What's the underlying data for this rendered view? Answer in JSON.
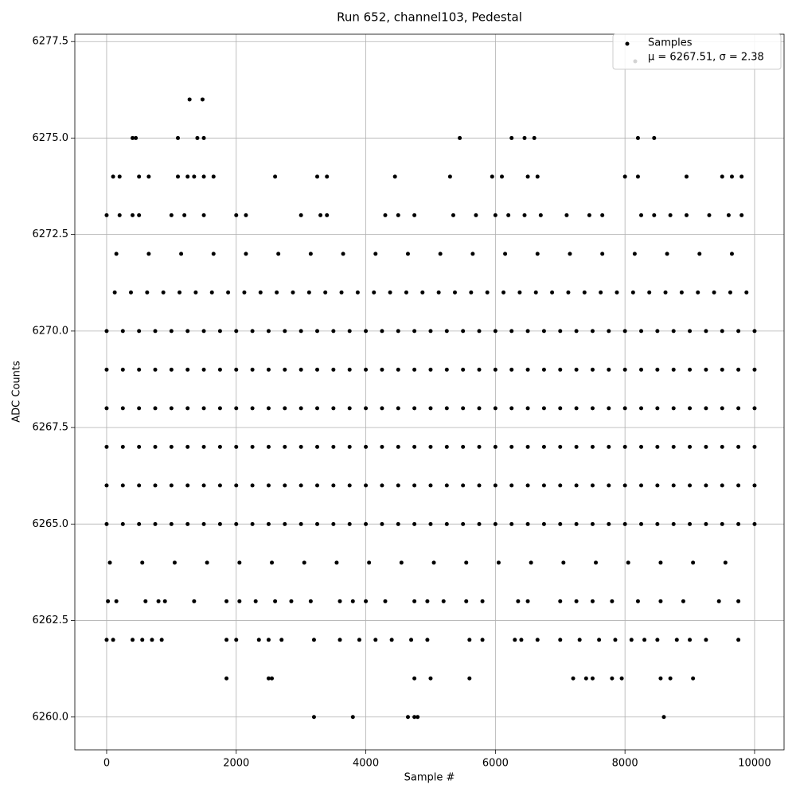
{
  "chart_data": {
    "type": "scatter",
    "title": "Run 652, channel103, Pedestal",
    "xlabel": "Sample #",
    "ylabel": "ADC Counts",
    "xlim": [
      -491,
      10455
    ],
    "ylim": [
      6259.15,
      6277.69
    ],
    "xticks": [
      0,
      2000,
      4000,
      6000,
      8000,
      10000
    ],
    "yticks": [
      {
        "value": 6260,
        "label": "6260.0"
      },
      {
        "value": 6262.5,
        "label": "6262.5"
      },
      {
        "value": 6265,
        "label": "6265.0"
      },
      {
        "value": 6267.5,
        "label": "6267.5"
      },
      {
        "value": 6270,
        "label": "6270.0"
      },
      {
        "value": 6272.5,
        "label": "6272.5"
      },
      {
        "value": 6275,
        "label": "6275.0"
      },
      {
        "value": 6277.5,
        "label": "6277.5"
      }
    ],
    "grid": true,
    "legend": "upper right",
    "series": [
      {
        "name": "Samples",
        "color": "#000000",
        "x": [
          0,
          250,
          500,
          750,
          1000,
          1250,
          1500,
          1750,
          2000,
          2250,
          2500,
          2750,
          3000,
          3250,
          3500,
          3750,
          4000,
          4250,
          4500,
          4750,
          5000,
          5250,
          5500,
          5750,
          6000,
          6250,
          6500,
          6750,
          7000,
          7250,
          7500,
          7750,
          8000,
          8250,
          8500,
          8750,
          9000,
          9250,
          9500,
          9750,
          10000,
          0,
          250,
          500,
          750,
          1000,
          1250,
          1500,
          1750,
          2000,
          2250,
          2500,
          2750,
          3000,
          3250,
          3500,
          3750,
          4000,
          4250,
          4500,
          4750,
          5000,
          5250,
          5500,
          5750,
          6000,
          6250,
          6500,
          6750,
          7000,
          7250,
          7500,
          7750,
          8000,
          8250,
          8500,
          8750,
          9000,
          9250,
          9500,
          9750,
          10000,
          0,
          250,
          500,
          750,
          1000,
          1250,
          1500,
          1750,
          2000,
          2250,
          2500,
          2750,
          3000,
          3250,
          3500,
          3750,
          4000,
          4250,
          4500,
          4750,
          5000,
          5250,
          5500,
          5750,
          6000,
          6250,
          6500,
          6750,
          7000,
          7250,
          7500,
          7750,
          8000,
          8250,
          8500,
          8750,
          9000,
          9250,
          9500,
          9750,
          10000,
          0,
          250,
          500,
          750,
          1000,
          1250,
          1500,
          1750,
          2000,
          2250,
          2500,
          2750,
          3000,
          3250,
          3500,
          3750,
          4000,
          4250,
          4500,
          4750,
          5000,
          5250,
          5500,
          5750,
          6000,
          6250,
          6500,
          6750,
          7000,
          7250,
          7500,
          7750,
          8000,
          8250,
          8500,
          8750,
          9000,
          9250,
          9500,
          9750,
          10000,
          0,
          250,
          500,
          750,
          1000,
          1250,
          1500,
          1750,
          2000,
          2250,
          2500,
          2750,
          3000,
          3250,
          3500,
          3750,
          4000,
          4250,
          4500,
          4750,
          5000,
          5250,
          5500,
          5750,
          6000,
          6250,
          6500,
          6750,
          7000,
          7250,
          7500,
          7750,
          8000,
          8250,
          8500,
          8750,
          9000,
          9250,
          9500,
          9750,
          10000,
          0,
          250,
          500,
          750,
          1000,
          1250,
          1500,
          1750,
          2000,
          2250,
          2500,
          2750,
          3000,
          3250,
          3500,
          3750,
          4000,
          4250,
          4500,
          4750,
          5000,
          5250,
          5500,
          5750,
          6000,
          6250,
          6500,
          6750,
          7000,
          7250,
          7500,
          7750,
          8000,
          8250,
          8500,
          8750,
          9000,
          9250,
          9500,
          9750,
          10000,
          125,
          375,
          625,
          875,
          1125,
          1375,
          1625,
          1875,
          2125,
          2375,
          2625,
          2875,
          3125,
          3375,
          3625,
          3875,
          4125,
          4375,
          4625,
          4875,
          5125,
          5375,
          5625,
          5875,
          6125,
          6375,
          6625,
          6875,
          7125,
          7375,
          7625,
          7875,
          8125,
          8375,
          8625,
          8875,
          9125,
          9375,
          9625,
          9875,
          50,
          550,
          1050,
          1550,
          2050,
          2550,
          3050,
          3550,
          4050,
          4550,
          5050,
          5550,
          6050,
          6550,
          7050,
          7550,
          8050,
          8550,
          9050,
          9550,
          150,
          650,
          1150,
          1650,
          2150,
          2650,
          3150,
          3650,
          4150,
          4650,
          5150,
          5650,
          6150,
          6650,
          7150,
          7650,
          8150,
          8650,
          9150,
          9650,
          20,
          150,
          600,
          800,
          900,
          1350,
          1850,
          2050,
          2300,
          2600,
          2850,
          3150,
          3600,
          3800,
          4000,
          4300,
          4750,
          4950,
          5200,
          5550,
          5800,
          6350,
          6500,
          7000,
          7250,
          7500,
          7800,
          8200,
          8550,
          8900,
          9450,
          9750,
          0,
          200,
          400,
          500,
          1000,
          1200,
          1500,
          2000,
          2150,
          3000,
          3300,
          3400,
          4300,
          4500,
          4750,
          5350,
          5700,
          6000,
          6200,
          6450,
          6700,
          7100,
          7450,
          7650,
          8250,
          8450,
          8700,
          8950,
          9300,
          9600,
          9800,
          0,
          100,
          400,
          550,
          700,
          850,
          1850,
          2000,
          2350,
          2500,
          2700,
          3200,
          3600,
          3900,
          4150,
          4400,
          4700,
          4950,
          5600,
          5800,
          6300,
          6400,
          6650,
          7000,
          7300,
          7600,
          7850,
          8100,
          8300,
          8500,
          8800,
          9000,
          9250,
          9750,
          100,
          200,
          500,
          650,
          1100,
          1250,
          1350,
          1500,
          1650,
          2600,
          3250,
          3400,
          4450,
          5300,
          5950,
          6100,
          6500,
          6650,
          8000,
          8200,
          8950,
          9500,
          9650,
          9800,
          400,
          450,
          1100,
          1400,
          1500,
          5450,
          6250,
          6450,
          6600,
          8200,
          8450,
          1280,
          1480,
          1850,
          2500,
          2550,
          4750,
          5000,
          5600,
          7200,
          7400,
          7500,
          7800,
          7950,
          8550,
          8700,
          9050,
          3200,
          3800,
          4650,
          4750,
          4800,
          8600
        ],
        "values": [
          6265,
          6265,
          6265,
          6265,
          6265,
          6265,
          6265,
          6265,
          6265,
          6265,
          6265,
          6265,
          6265,
          6265,
          6265,
          6265,
          6265,
          6265,
          6265,
          6265,
          6265,
          6265,
          6265,
          6265,
          6265,
          6265,
          6265,
          6265,
          6265,
          6265,
          6265,
          6265,
          6265,
          6265,
          6265,
          6265,
          6265,
          6265,
          6265,
          6265,
          6265,
          6266,
          6266,
          6266,
          6266,
          6266,
          6266,
          6266,
          6266,
          6266,
          6266,
          6266,
          6266,
          6266,
          6266,
          6266,
          6266,
          6266,
          6266,
          6266,
          6266,
          6266,
          6266,
          6266,
          6266,
          6266,
          6266,
          6266,
          6266,
          6266,
          6266,
          6266,
          6266,
          6266,
          6266,
          6266,
          6266,
          6266,
          6266,
          6266,
          6266,
          6266,
          6267,
          6267,
          6267,
          6267,
          6267,
          6267,
          6267,
          6267,
          6267,
          6267,
          6267,
          6267,
          6267,
          6267,
          6267,
          6267,
          6267,
          6267,
          6267,
          6267,
          6267,
          6267,
          6267,
          6267,
          6267,
          6267,
          6267,
          6267,
          6267,
          6267,
          6267,
          6267,
          6267,
          6267,
          6267,
          6267,
          6267,
          6267,
          6267,
          6267,
          6267,
          6268,
          6268,
          6268,
          6268,
          6268,
          6268,
          6268,
          6268,
          6268,
          6268,
          6268,
          6268,
          6268,
          6268,
          6268,
          6268,
          6268,
          6268,
          6268,
          6268,
          6268,
          6268,
          6268,
          6268,
          6268,
          6268,
          6268,
          6268,
          6268,
          6268,
          6268,
          6268,
          6268,
          6268,
          6268,
          6268,
          6268,
          6268,
          6268,
          6268,
          6268,
          6269,
          6269,
          6269,
          6269,
          6269,
          6269,
          6269,
          6269,
          6269,
          6269,
          6269,
          6269,
          6269,
          6269,
          6269,
          6269,
          6269,
          6269,
          6269,
          6269,
          6269,
          6269,
          6269,
          6269,
          6269,
          6269,
          6269,
          6269,
          6269,
          6269,
          6269,
          6269,
          6269,
          6269,
          6269,
          6269,
          6269,
          6269,
          6269,
          6269,
          6269,
          6270,
          6270,
          6270,
          6270,
          6270,
          6270,
          6270,
          6270,
          6270,
          6270,
          6270,
          6270,
          6270,
          6270,
          6270,
          6270,
          6270,
          6270,
          6270,
          6270,
          6270,
          6270,
          6270,
          6270,
          6270,
          6270,
          6270,
          6270,
          6270,
          6270,
          6270,
          6270,
          6270,
          6270,
          6270,
          6270,
          6270,
          6270,
          6270,
          6270,
          6270,
          6271,
          6271,
          6271,
          6271,
          6271,
          6271,
          6271,
          6271,
          6271,
          6271,
          6271,
          6271,
          6271,
          6271,
          6271,
          6271,
          6271,
          6271,
          6271,
          6271,
          6271,
          6271,
          6271,
          6271,
          6271,
          6271,
          6271,
          6271,
          6271,
          6271,
          6271,
          6271,
          6271,
          6271,
          6271,
          6271,
          6271,
          6271,
          6271,
          6271,
          6264,
          6264,
          6264,
          6264,
          6264,
          6264,
          6264,
          6264,
          6264,
          6264,
          6264,
          6264,
          6264,
          6264,
          6264,
          6264,
          6264,
          6264,
          6264,
          6264,
          6272,
          6272,
          6272,
          6272,
          6272,
          6272,
          6272,
          6272,
          6272,
          6272,
          6272,
          6272,
          6272,
          6272,
          6272,
          6272,
          6272,
          6272,
          6272,
          6272,
          6263,
          6263,
          6263,
          6263,
          6263,
          6263,
          6263,
          6263,
          6263,
          6263,
          6263,
          6263,
          6263,
          6263,
          6263,
          6263,
          6263,
          6263,
          6263,
          6263,
          6263,
          6263,
          6263,
          6263,
          6263,
          6263,
          6263,
          6263,
          6263,
          6263,
          6263,
          6263,
          6273,
          6273,
          6273,
          6273,
          6273,
          6273,
          6273,
          6273,
          6273,
          6273,
          6273,
          6273,
          6273,
          6273,
          6273,
          6273,
          6273,
          6273,
          6273,
          6273,
          6273,
          6273,
          6273,
          6273,
          6273,
          6273,
          6273,
          6273,
          6273,
          6273,
          6273,
          6262,
          6262,
          6262,
          6262,
          6262,
          6262,
          6262,
          6262,
          6262,
          6262,
          6262,
          6262,
          6262,
          6262,
          6262,
          6262,
          6262,
          6262,
          6262,
          6262,
          6262,
          6262,
          6262,
          6262,
          6262,
          6262,
          6262,
          6262,
          6262,
          6262,
          6262,
          6262,
          6262,
          6262,
          6274,
          6274,
          6274,
          6274,
          6274,
          6274,
          6274,
          6274,
          6274,
          6274,
          6274,
          6274,
          6274,
          6274,
          6274,
          6274,
          6274,
          6274,
          6274,
          6274,
          6274,
          6274,
          6274,
          6274,
          6275,
          6275,
          6275,
          6275,
          6275,
          6275,
          6275,
          6275,
          6275,
          6275,
          6275,
          6276,
          6276,
          6261,
          6261,
          6261,
          6261,
          6261,
          6261,
          6261,
          6261,
          6261,
          6261,
          6261,
          6261,
          6261,
          6261,
          6260,
          6260,
          6260,
          6260,
          6260,
          6260
        ]
      },
      {
        "name": "μ = 6267.51, σ = 2.38",
        "color": "#d3d3d3",
        "x": [],
        "values": []
      }
    ]
  }
}
